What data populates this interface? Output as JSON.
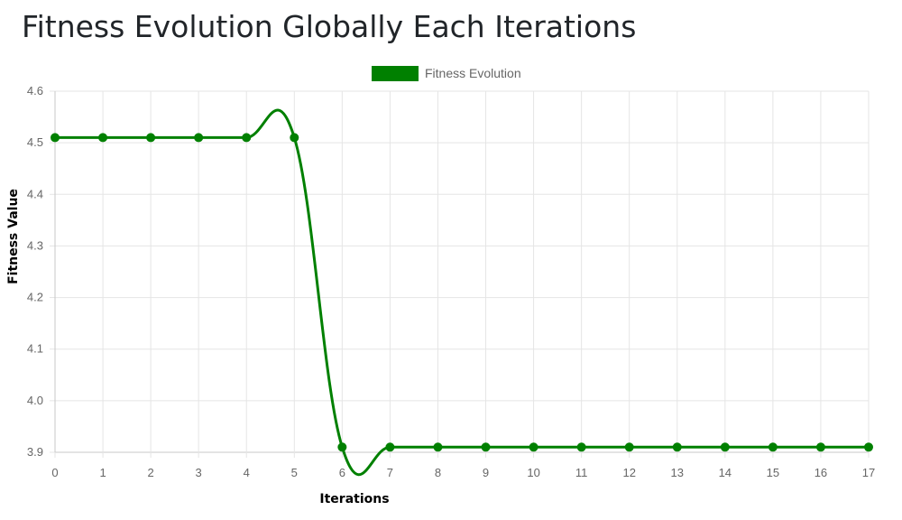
{
  "page": {
    "title": "Fitness Evolution Globally Each Iterations"
  },
  "chart_data": {
    "type": "line",
    "x": [
      0,
      1,
      2,
      3,
      4,
      5,
      6,
      7,
      8,
      9,
      10,
      11,
      12,
      13,
      14,
      15,
      16,
      17
    ],
    "series": [
      {
        "name": "Fitness Evolution",
        "values": [
          4.51,
          4.51,
          4.51,
          4.51,
          4.51,
          4.51,
          3.91,
          3.91,
          3.91,
          3.91,
          3.91,
          3.91,
          3.91,
          3.91,
          3.91,
          3.91,
          3.91,
          3.91
        ],
        "color": "#008000"
      }
    ],
    "xlabel": "Iterations",
    "ylabel": "Fitness Value",
    "xticks": [
      "0",
      "1",
      "2",
      "3",
      "4",
      "5",
      "6",
      "7",
      "8",
      "9",
      "10",
      "11",
      "12",
      "13",
      "14",
      "15",
      "16",
      "17"
    ],
    "yticks": [
      "3.9",
      "4.0",
      "4.1",
      "4.2",
      "4.3",
      "4.4",
      "4.5",
      "4.6"
    ],
    "xlim": [
      0,
      17
    ],
    "ylim": [
      3.9,
      4.6
    ],
    "grid": true,
    "legend_position": "top",
    "smooth": true
  }
}
